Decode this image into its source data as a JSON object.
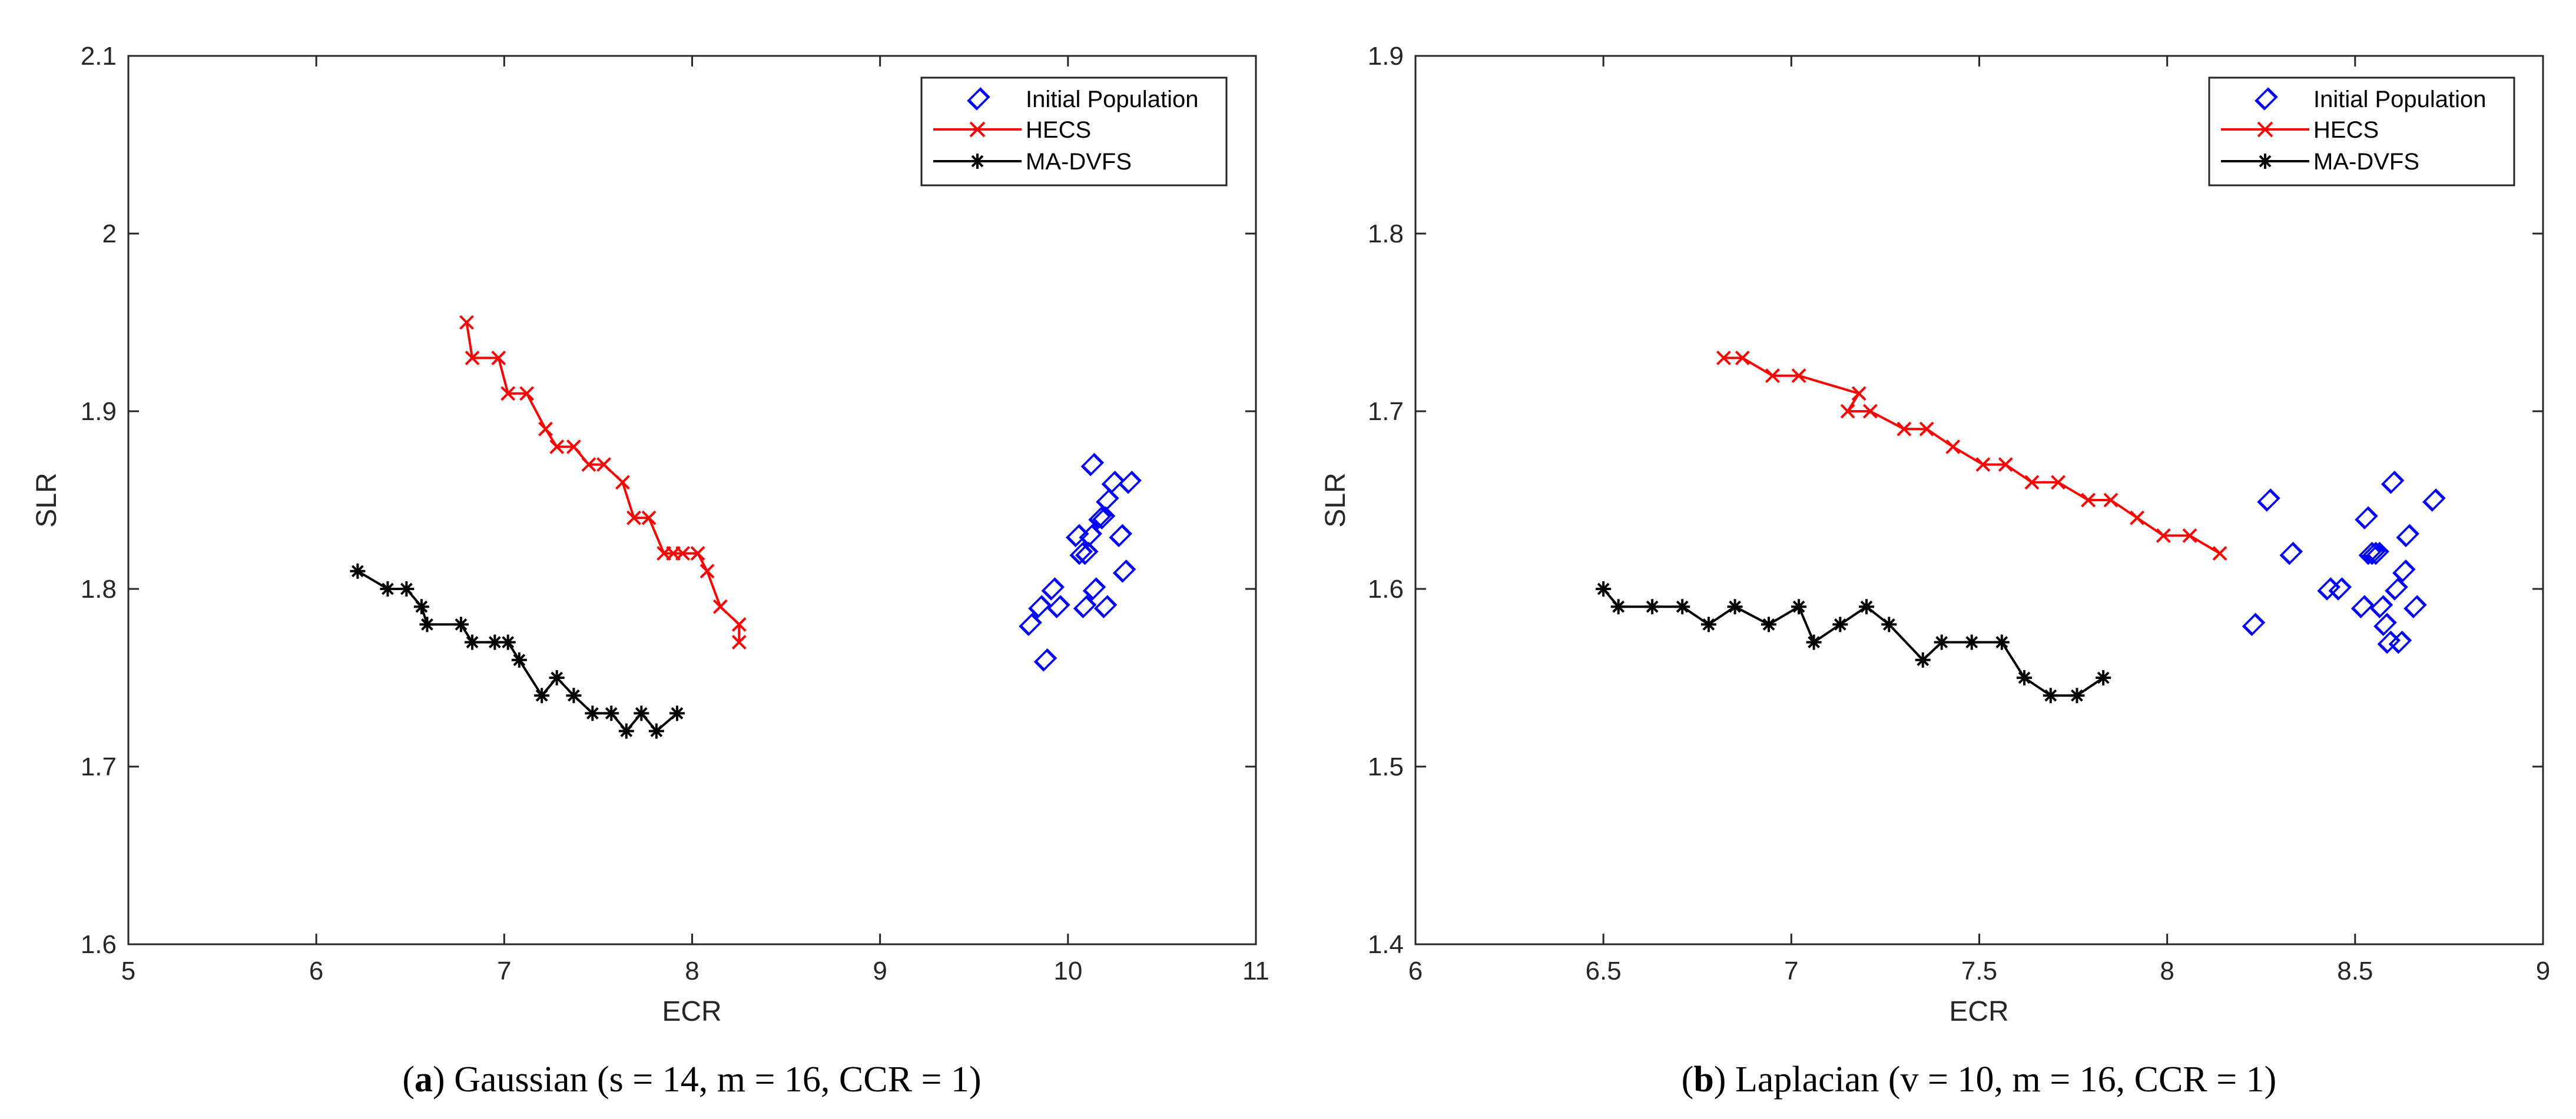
{
  "chart_data": [
    {
      "type": "scatter",
      "xlabel": "ECR",
      "ylabel": "SLR",
      "xlim": [
        5,
        11
      ],
      "ylim": [
        1.6,
        2.1
      ],
      "xticks": [
        "5",
        "6",
        "7",
        "8",
        "9",
        "10",
        "11"
      ],
      "yticks": [
        "1.6",
        "1.7",
        "1.8",
        "1.9",
        "2",
        "2.1"
      ],
      "legend_position": "top-right",
      "caption_letter": "a",
      "caption_text": "Gaussian (s = 14, m = 16, CCR = 1)",
      "series": [
        {
          "name": "Initial Population",
          "style": "diamond",
          "color": "#0000ff",
          "points": [
            [
              9.8,
              1.78
            ],
            [
              9.85,
              1.79
            ],
            [
              9.88,
              1.76
            ],
            [
              9.92,
              1.8
            ],
            [
              9.95,
              1.79
            ],
            [
              10.05,
              1.83
            ],
            [
              10.07,
              1.82
            ],
            [
              10.09,
              1.79
            ],
            [
              10.1,
              1.82
            ],
            [
              10.12,
              1.83
            ],
            [
              10.13,
              1.87
            ],
            [
              10.14,
              1.8
            ],
            [
              10.17,
              1.84
            ],
            [
              10.19,
              1.84
            ],
            [
              10.2,
              1.79
            ],
            [
              10.21,
              1.85
            ],
            [
              10.24,
              1.86
            ],
            [
              10.28,
              1.83
            ],
            [
              10.3,
              1.81
            ],
            [
              10.33,
              1.86
            ]
          ]
        },
        {
          "name": "HECS",
          "style": "line-x",
          "color": "#ff0000",
          "points": [
            [
              6.8,
              1.95
            ],
            [
              6.83,
              1.93
            ],
            [
              6.97,
              1.93
            ],
            [
              7.02,
              1.91
            ],
            [
              7.12,
              1.91
            ],
            [
              7.22,
              1.89
            ],
            [
              7.28,
              1.88
            ],
            [
              7.37,
              1.88
            ],
            [
              7.45,
              1.87
            ],
            [
              7.53,
              1.87
            ],
            [
              7.63,
              1.86
            ],
            [
              7.69,
              1.84
            ],
            [
              7.77,
              1.84
            ],
            [
              7.85,
              1.82
            ],
            [
              7.9,
              1.82
            ],
            [
              7.95,
              1.82
            ],
            [
              8.03,
              1.82
            ],
            [
              8.08,
              1.81
            ],
            [
              8.15,
              1.79
            ],
            [
              8.25,
              1.78
            ],
            [
              8.25,
              1.77
            ]
          ]
        },
        {
          "name": "MA-DVFS",
          "style": "line-star",
          "color": "#000000",
          "points": [
            [
              6.22,
              1.81
            ],
            [
              6.38,
              1.8
            ],
            [
              6.48,
              1.8
            ],
            [
              6.56,
              1.79
            ],
            [
              6.59,
              1.78
            ],
            [
              6.77,
              1.78
            ],
            [
              6.83,
              1.77
            ],
            [
              6.95,
              1.77
            ],
            [
              7.02,
              1.77
            ],
            [
              7.08,
              1.76
            ],
            [
              7.2,
              1.74
            ],
            [
              7.28,
              1.75
            ],
            [
              7.37,
              1.74
            ],
            [
              7.47,
              1.73
            ],
            [
              7.57,
              1.73
            ],
            [
              7.65,
              1.72
            ],
            [
              7.73,
              1.73
            ],
            [
              7.81,
              1.72
            ],
            [
              7.92,
              1.73
            ]
          ]
        }
      ]
    },
    {
      "type": "scatter",
      "xlabel": "ECR",
      "ylabel": "SLR",
      "xlim": [
        6,
        9
      ],
      "ylim": [
        1.4,
        1.9
      ],
      "xticks": [
        "6",
        "6.5",
        "7",
        "7.5",
        "8",
        "8.5",
        "9"
      ],
      "yticks": [
        "1.4",
        "1.5",
        "1.6",
        "1.7",
        "1.8",
        "1.9"
      ],
      "legend_position": "top-right",
      "caption_letter": "b",
      "caption_text": "Laplacian (v = 10, m = 16, CCR = 1)",
      "series": [
        {
          "name": "Initial Population",
          "style": "diamond",
          "color": "#0000ff",
          "points": [
            [
              8.23,
              1.58
            ],
            [
              8.27,
              1.65
            ],
            [
              8.33,
              1.62
            ],
            [
              8.43,
              1.6
            ],
            [
              8.46,
              1.6
            ],
            [
              8.52,
              1.59
            ],
            [
              8.53,
              1.64
            ],
            [
              8.54,
              1.62
            ],
            [
              8.55,
              1.62
            ],
            [
              8.56,
              1.62
            ],
            [
              8.57,
              1.59
            ],
            [
              8.58,
              1.58
            ],
            [
              8.59,
              1.57
            ],
            [
              8.6,
              1.66
            ],
            [
              8.61,
              1.6
            ],
            [
              8.62,
              1.57
            ],
            [
              8.63,
              1.61
            ],
            [
              8.64,
              1.63
            ],
            [
              8.66,
              1.59
            ],
            [
              8.71,
              1.65
            ]
          ]
        },
        {
          "name": "HECS",
          "style": "line-x",
          "color": "#ff0000",
          "points": [
            [
              6.82,
              1.73
            ],
            [
              6.87,
              1.73
            ],
            [
              6.95,
              1.72
            ],
            [
              7.02,
              1.72
            ],
            [
              7.18,
              1.71
            ],
            [
              7.15,
              1.7
            ],
            [
              7.21,
              1.7
            ],
            [
              7.3,
              1.69
            ],
            [
              7.36,
              1.69
            ],
            [
              7.43,
              1.68
            ],
            [
              7.51,
              1.67
            ],
            [
              7.57,
              1.67
            ],
            [
              7.64,
              1.66
            ],
            [
              7.71,
              1.66
            ],
            [
              7.79,
              1.65
            ],
            [
              7.85,
              1.65
            ],
            [
              7.92,
              1.64
            ],
            [
              7.99,
              1.63
            ],
            [
              8.06,
              1.63
            ],
            [
              8.14,
              1.62
            ]
          ]
        },
        {
          "name": "MA-DVFS",
          "style": "line-star",
          "color": "#000000",
          "points": [
            [
              6.5,
              1.6
            ],
            [
              6.54,
              1.59
            ],
            [
              6.63,
              1.59
            ],
            [
              6.71,
              1.59
            ],
            [
              6.78,
              1.58
            ],
            [
              6.85,
              1.59
            ],
            [
              6.94,
              1.58
            ],
            [
              7.02,
              1.59
            ],
            [
              7.06,
              1.57
            ],
            [
              7.13,
              1.58
            ],
            [
              7.2,
              1.59
            ],
            [
              7.26,
              1.58
            ],
            [
              7.35,
              1.56
            ],
            [
              7.4,
              1.57
            ],
            [
              7.48,
              1.57
            ],
            [
              7.56,
              1.57
            ],
            [
              7.62,
              1.55
            ],
            [
              7.69,
              1.54
            ],
            [
              7.76,
              1.54
            ],
            [
              7.83,
              1.55
            ]
          ]
        }
      ]
    }
  ]
}
